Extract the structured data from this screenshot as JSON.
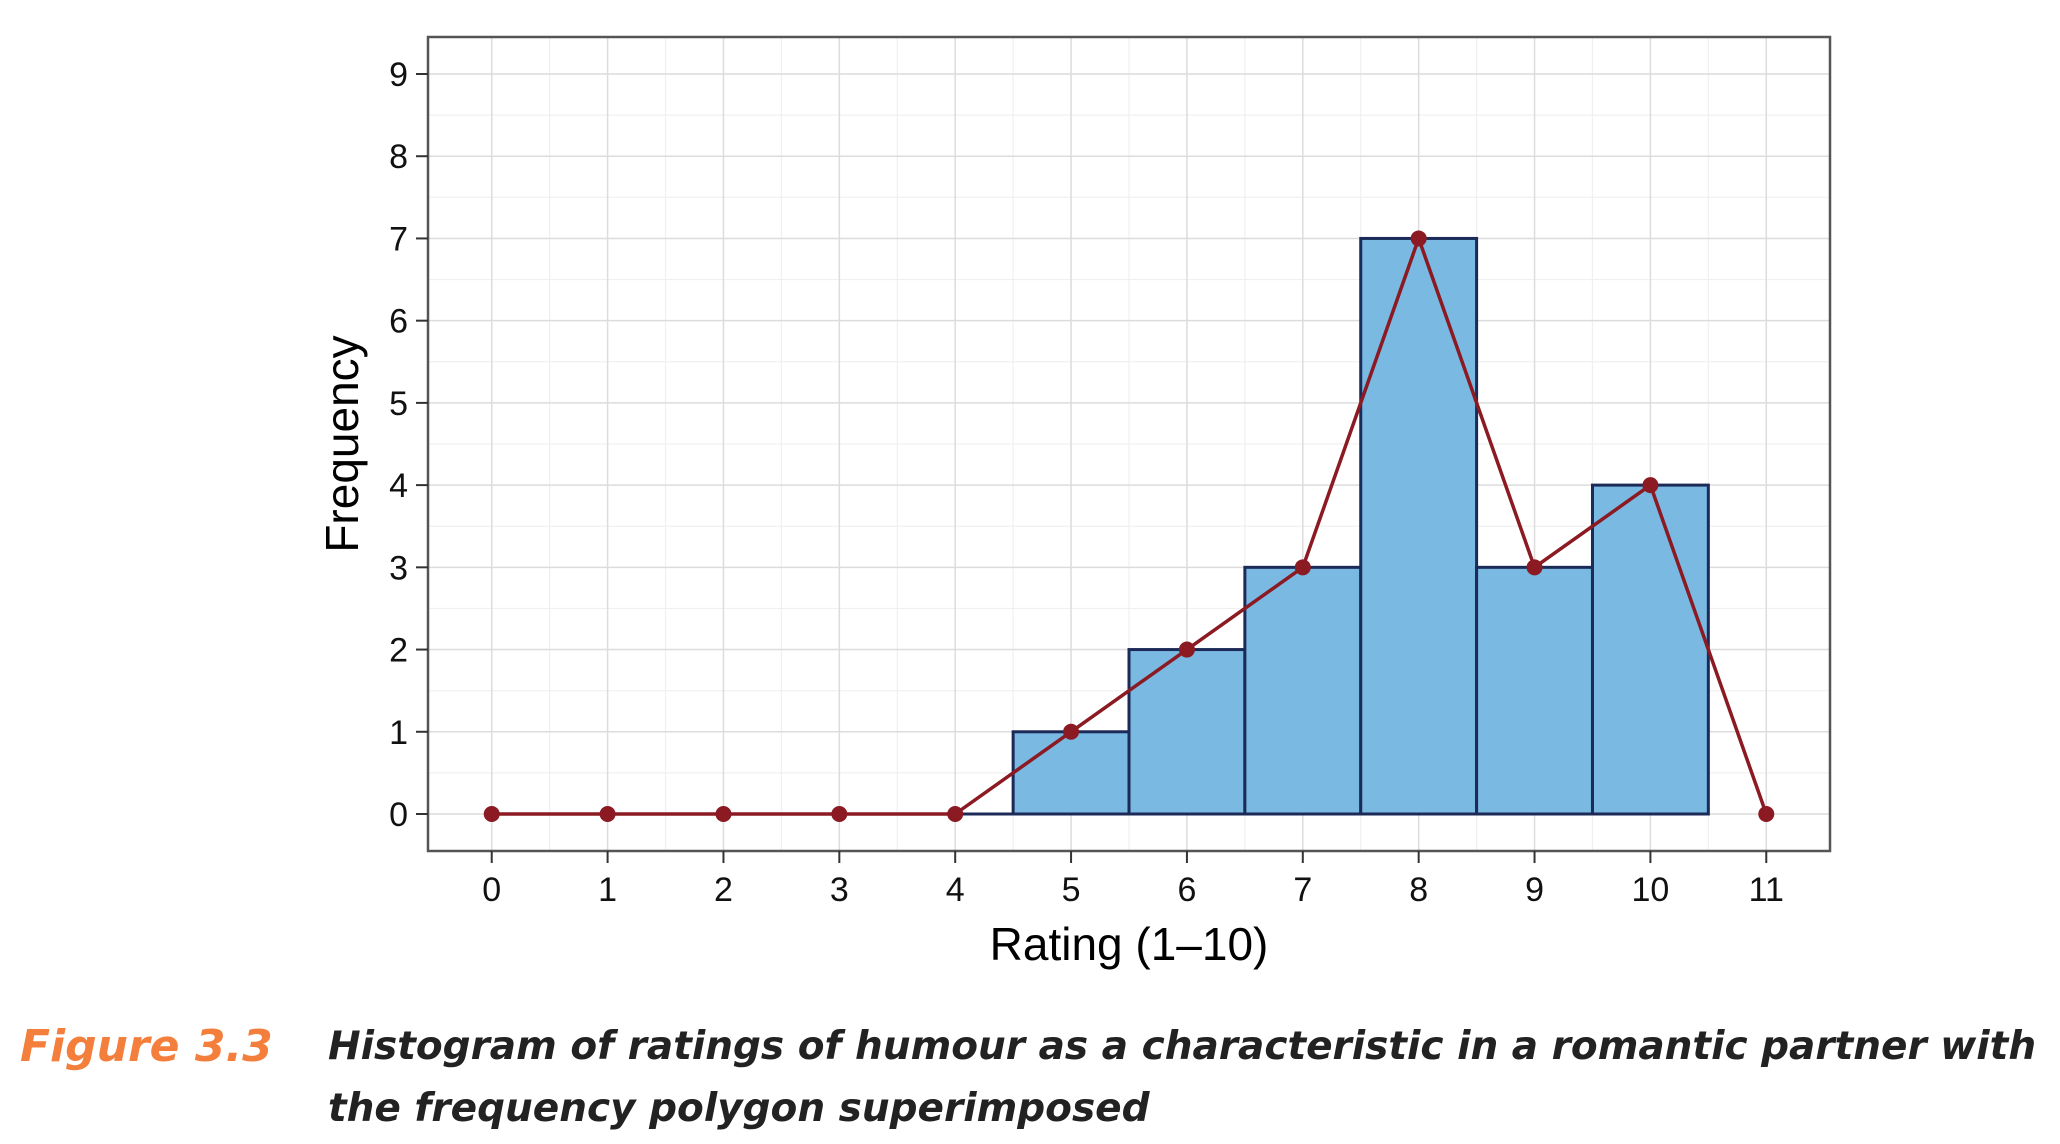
{
  "chart_data": {
    "type": "bar",
    "subtype": "histogram with frequency polygon",
    "xlabel": "Rating (1–10)",
    "ylabel": "Frequency",
    "x_ticks": [
      "0",
      "1",
      "2",
      "3",
      "4",
      "5",
      "6",
      "7",
      "8",
      "9",
      "10",
      "11"
    ],
    "y_ticks": [
      "0",
      "1",
      "2",
      "3",
      "4",
      "5",
      "6",
      "7",
      "8",
      "9"
    ],
    "xlim": [
      -0.55,
      11.55
    ],
    "ylim": [
      -0.45,
      9.45
    ],
    "grid": true,
    "histogram": {
      "categories": [
        1,
        2,
        3,
        4,
        5,
        6,
        7,
        8,
        9,
        10
      ],
      "values": [
        0,
        0,
        0,
        0,
        1,
        2,
        3,
        7,
        3,
        4
      ],
      "fill_color": "#79b9e2",
      "edge_color": "#1b2a57"
    },
    "frequency_polygon": {
      "x": [
        0,
        1,
        2,
        3,
        4,
        5,
        6,
        7,
        8,
        9,
        10,
        11
      ],
      "y": [
        0,
        0,
        0,
        0,
        0,
        1,
        2,
        3,
        7,
        3,
        4,
        0
      ],
      "color": "#8b1a22"
    }
  },
  "caption": {
    "label": "Figure 3.3",
    "text": "Histogram of ratings of humour as a characteristic in a romantic partner with the frequency polygon superimposed",
    "label_color": "#f47f3c"
  }
}
